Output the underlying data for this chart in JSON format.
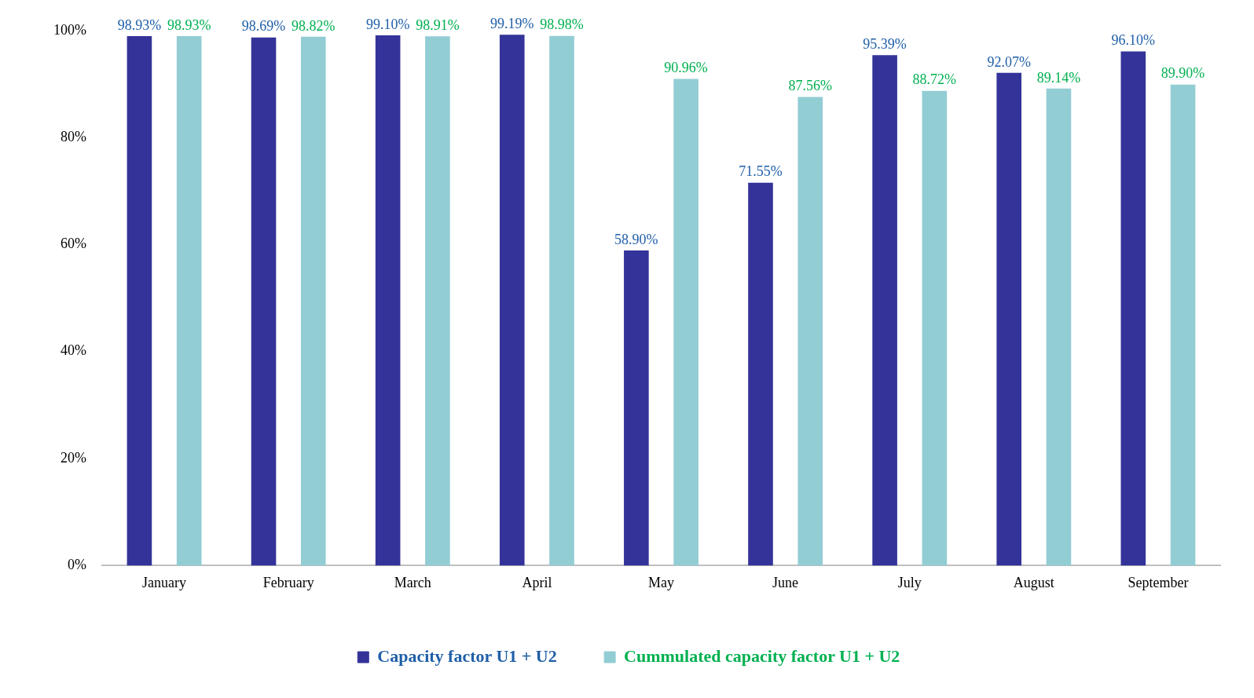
{
  "chart_data": {
    "type": "bar",
    "categories": [
      "January",
      "February",
      "March",
      "April",
      "May",
      "June",
      "July",
      "August",
      "September"
    ],
    "series": [
      {
        "name": "Capacity factor U1 + U2",
        "color": "#333399",
        "values": [
          98.93,
          98.69,
          99.1,
          99.19,
          58.9,
          71.55,
          95.39,
          92.07,
          96.1
        ],
        "value_labels": [
          "98.93%",
          "98.69%",
          "99.10%",
          "99.19%",
          "58.90%",
          "71.55%",
          "95.39%",
          "92.07%",
          "96.10%"
        ]
      },
      {
        "name": "Cummulated capacity factor U1 + U2",
        "color": "#92cdd4",
        "values": [
          98.93,
          98.82,
          98.91,
          98.98,
          90.96,
          87.56,
          88.72,
          89.14,
          89.9
        ],
        "value_labels": [
          "98.93%",
          "98.82%",
          "98.91%",
          "98.98%",
          "90.96%",
          "87.56%",
          "88.72%",
          "89.14%",
          "89.90%"
        ]
      }
    ],
    "ylim": [
      0,
      100
    ],
    "yticks": [
      {
        "value": 0,
        "label": "0%"
      },
      {
        "value": 20,
        "label": "20%"
      },
      {
        "value": 40,
        "label": "40%"
      },
      {
        "value": 60,
        "label": "60%"
      },
      {
        "value": 80,
        "label": "80%"
      },
      {
        "value": 100,
        "label": "100%"
      }
    ],
    "grid": false,
    "legend": "bottom"
  }
}
